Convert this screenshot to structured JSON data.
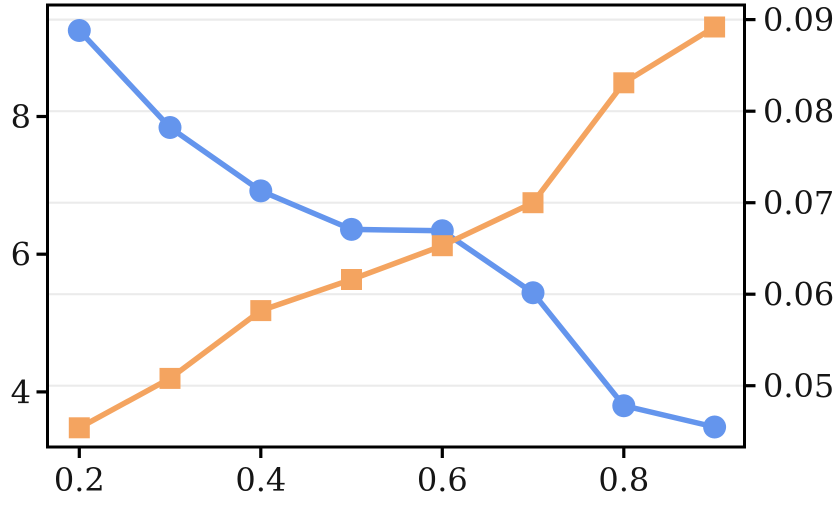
{
  "chart_data": {
    "type": "line",
    "title": "",
    "xlabel": "",
    "ylabel_left": "",
    "ylabel_right": "",
    "legend": null,
    "grid": "horizontal gridlines aligned to right-axis ticks",
    "x": [
      0.2,
      0.3,
      0.4,
      0.5,
      0.6,
      0.7,
      0.8,
      0.9
    ],
    "series": [
      {
        "name": "blue-circle-series",
        "axis": "left",
        "marker": "circle",
        "color": "#6495ED",
        "values": [
          9.25,
          7.84,
          6.92,
          6.36,
          6.34,
          5.44,
          3.8,
          3.49
        ]
      },
      {
        "name": "orange-square-series",
        "axis": "right",
        "marker": "square",
        "color": "#F4A460",
        "values": [
          0.0454,
          0.0508,
          0.0582,
          0.0616,
          0.0653,
          0.07,
          0.0831,
          0.0892
        ]
      }
    ],
    "x_ticks": {
      "values": [
        0.2,
        0.4,
        0.6,
        0.8
      ],
      "labels": [
        "0.2",
        "0.4",
        "0.6",
        "0.8"
      ]
    },
    "left_y_ticks": {
      "values": [
        4,
        6,
        8
      ],
      "labels": [
        "4",
        "6",
        "8"
      ]
    },
    "right_y_ticks": {
      "values": [
        0.05,
        0.06,
        0.07,
        0.08,
        0.09
      ],
      "labels": [
        "0.05",
        "0.06",
        "0.07",
        "0.08",
        "0.09"
      ]
    },
    "xlim": [
      0.165,
      0.933
    ],
    "ylim_left": [
      3.2,
      9.62
    ],
    "ylim_right": [
      0.0433,
      0.0916
    ],
    "colors": {
      "blue_series": "#6495ED",
      "orange_series": "#F4A460",
      "gridline": "#EBEBEB",
      "axis": "#000000",
      "tick_label": "#151515",
      "background": "#FFFFFF"
    }
  }
}
